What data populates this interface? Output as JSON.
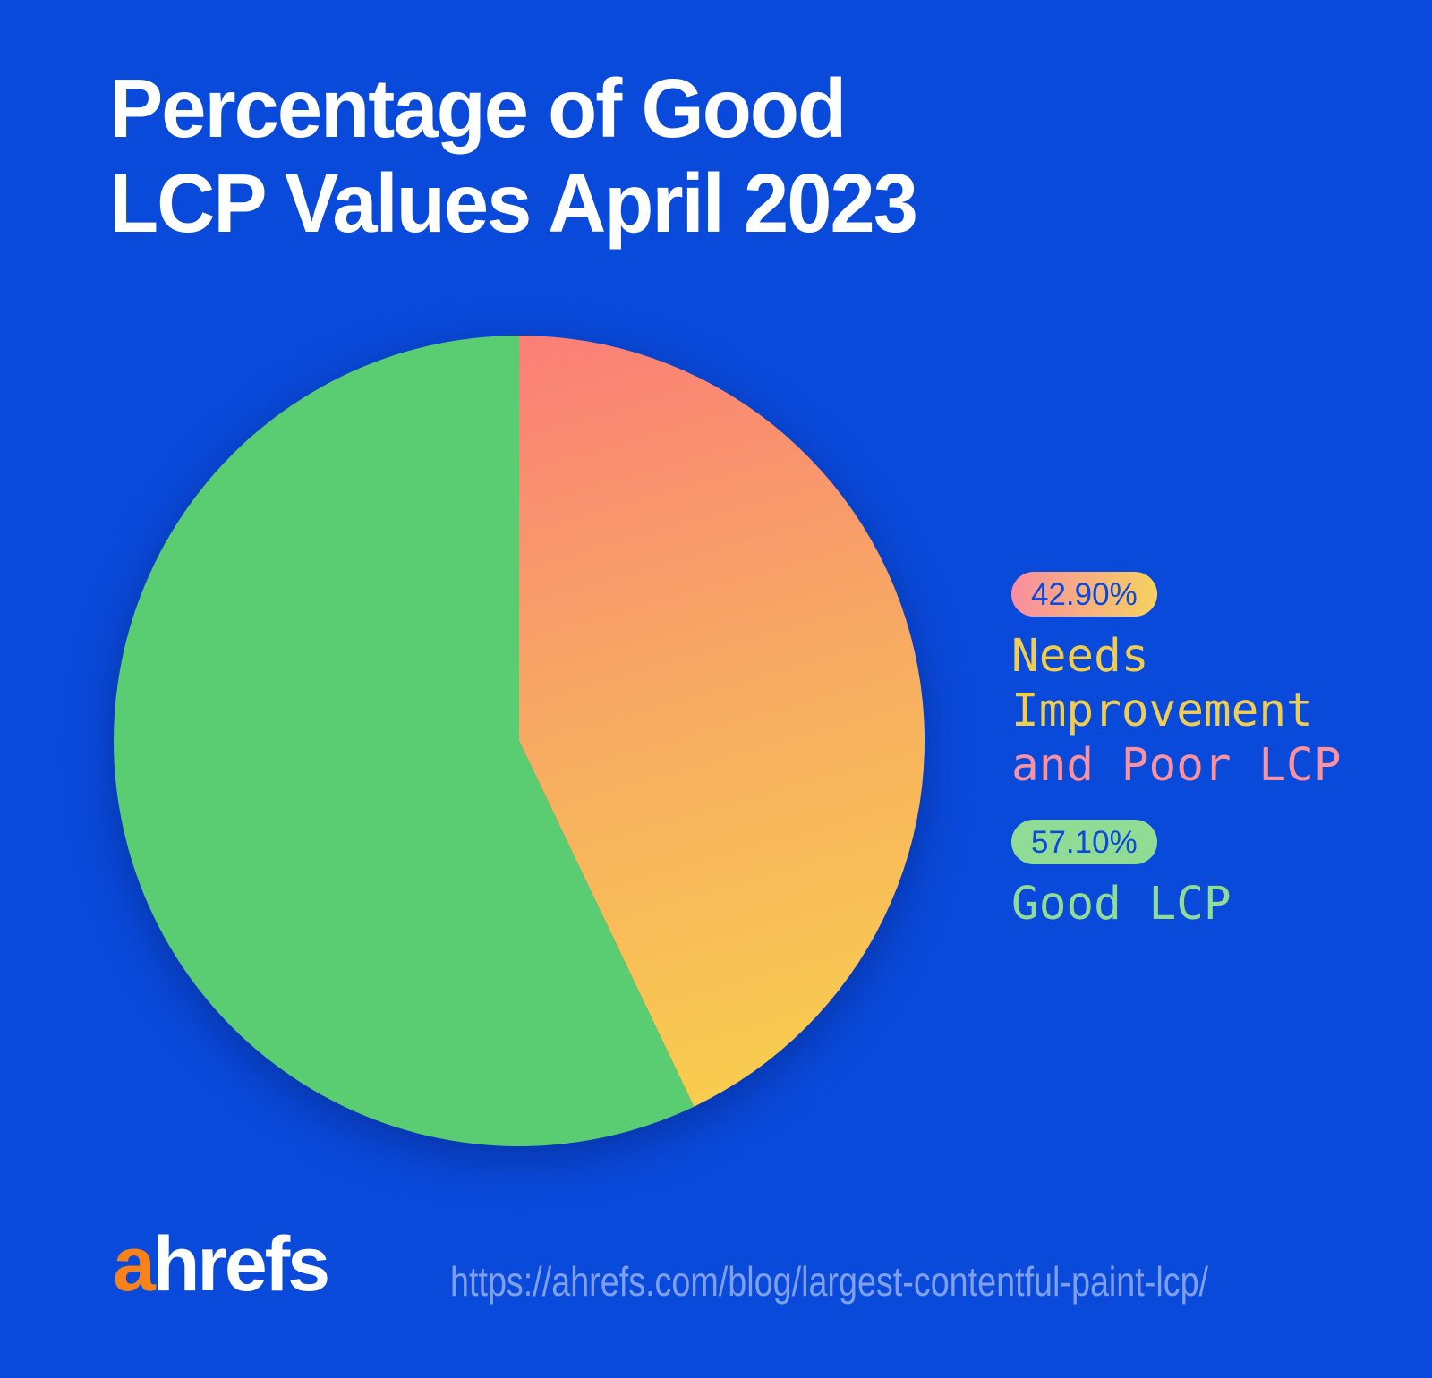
{
  "colors": {
    "bg": "#0A4ADB",
    "white": "#FFFFFF",
    "pie-green": "#5ACD72",
    "grad-red": "#FB7E77",
    "grad-orange": "#F7AC62",
    "grad-yellow": "#F8CE4D",
    "legend-yellow": "#F0CD4E",
    "legend-pink": "#F9919E",
    "legend-green": "#90DC95",
    "pill-pink": "#F98DA0",
    "pill-yellow": "#F6D25E",
    "orange": "#F78219",
    "url": "#7F9FE8",
    "shadow": "rgba(3,22,100,0.45)"
  },
  "title": {
    "line1": "Percentage of Good",
    "line2": "LCP Values April 2023"
  },
  "legend": {
    "items": [
      {
        "badge": "42.90%",
        "label_main": "Needs Improvement",
        "label_secondary": "and Poor LCP"
      },
      {
        "badge": "57.10%",
        "label_main": "Good LCP",
        "label_secondary": ""
      }
    ]
  },
  "footer": {
    "logo_part1": "a",
    "logo_part2": "hrefs",
    "url": "https://ahrefs.com/blog/largest-contentful-paint-lcp/"
  },
  "chart_data": {
    "type": "pie",
    "title": "Percentage of Good LCP Values April 2023",
    "slices": [
      {
        "label": "Needs Improvement and Poor LCP",
        "value": 42.9,
        "display": "42.90%",
        "fill": "gradient"
      },
      {
        "label": "Good LCP",
        "value": 57.1,
        "display": "57.10%",
        "fill": "solid-green"
      }
    ],
    "start_angle_deg": 0,
    "direction": "clockwise",
    "legend_position": "right",
    "units": "percent"
  }
}
